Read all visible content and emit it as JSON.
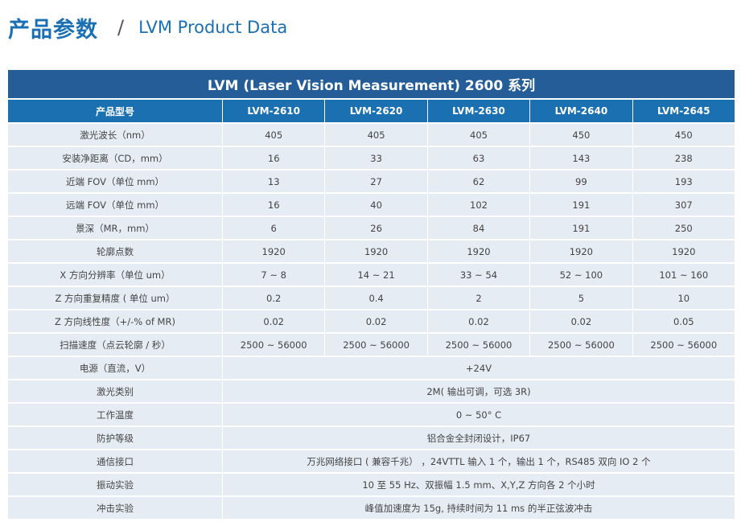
{
  "header": {
    "title_cn": "产品参数",
    "separator": "/",
    "title_en": "LVM Product Data"
  },
  "table": {
    "title": "LVM (Laser Vision Measurement) 2600 系列",
    "columns": [
      "产品型号",
      "LVM-2610",
      "LVM-2620",
      "LVM-2630",
      "LVM-2640",
      "LVM-2645"
    ],
    "rows": [
      {
        "label": "激光波长（nm）",
        "values": [
          "405",
          "405",
          "405",
          "450",
          "450"
        ]
      },
      {
        "label": "安装净距离（CD，mm）",
        "values": [
          "16",
          "33",
          "63",
          "143",
          "238"
        ]
      },
      {
        "label": "近端 FOV（单位 mm）",
        "values": [
          "13",
          "27",
          "62",
          "99",
          "193"
        ]
      },
      {
        "label": "远端 FOV（单位 mm）",
        "values": [
          "16",
          "40",
          "102",
          "191",
          "307"
        ]
      },
      {
        "label": "景深（MR，mm）",
        "values": [
          "6",
          "26",
          "84",
          "191",
          "250"
        ]
      },
      {
        "label": "轮廓点数",
        "values": [
          "1920",
          "1920",
          "1920",
          "1920",
          "1920"
        ]
      },
      {
        "label": "X 方向分辨率（单位 um）",
        "values": [
          "7 ~ 8",
          "14 ~ 21",
          "33 ~ 54",
          "52 ~ 100",
          "101 ~ 160"
        ]
      },
      {
        "label": "Z 方向重复精度 ( 单位 um）",
        "values": [
          "0.2",
          "0.4",
          "2",
          "5",
          "10"
        ]
      },
      {
        "label": "Z 方向线性度（+/-% of MR)",
        "values": [
          "0.02",
          "0.02",
          "0.02",
          "0.02",
          "0.05"
        ]
      },
      {
        "label": "扫描速度（点云轮廓 / 秒）",
        "values": [
          "2500 ~ 56000",
          "2500 ~ 56000",
          "2500 ~ 56000",
          "2500 ~ 56000",
          "2500 ~ 56000"
        ]
      }
    ],
    "merged_rows": [
      {
        "label": "电源（直流，V）",
        "value": "+24V"
      },
      {
        "label": "激光类别",
        "value": "2M( 输出可调，可选 3R)"
      },
      {
        "label": "工作温度",
        "value": "0 ~ 50° C"
      },
      {
        "label": "防护等级",
        "value": "铝合金全封闭设计，IP67"
      },
      {
        "label": "通信接口",
        "value": "万兆网络接口 ( 兼容千兆） ，24VTTL 输入 1 个，输出 1 个，RS485 双向 IO 2 个"
      },
      {
        "label": "振动实验",
        "value": "10 至 55 Hz、双振幅 1.5 mm、X,Y,Z 方向各 2 个小时"
      },
      {
        "label": "冲击实验",
        "value": "峰值加速度为 15g, 持续时间为 11 ms 的半正弦波冲击"
      }
    ]
  }
}
